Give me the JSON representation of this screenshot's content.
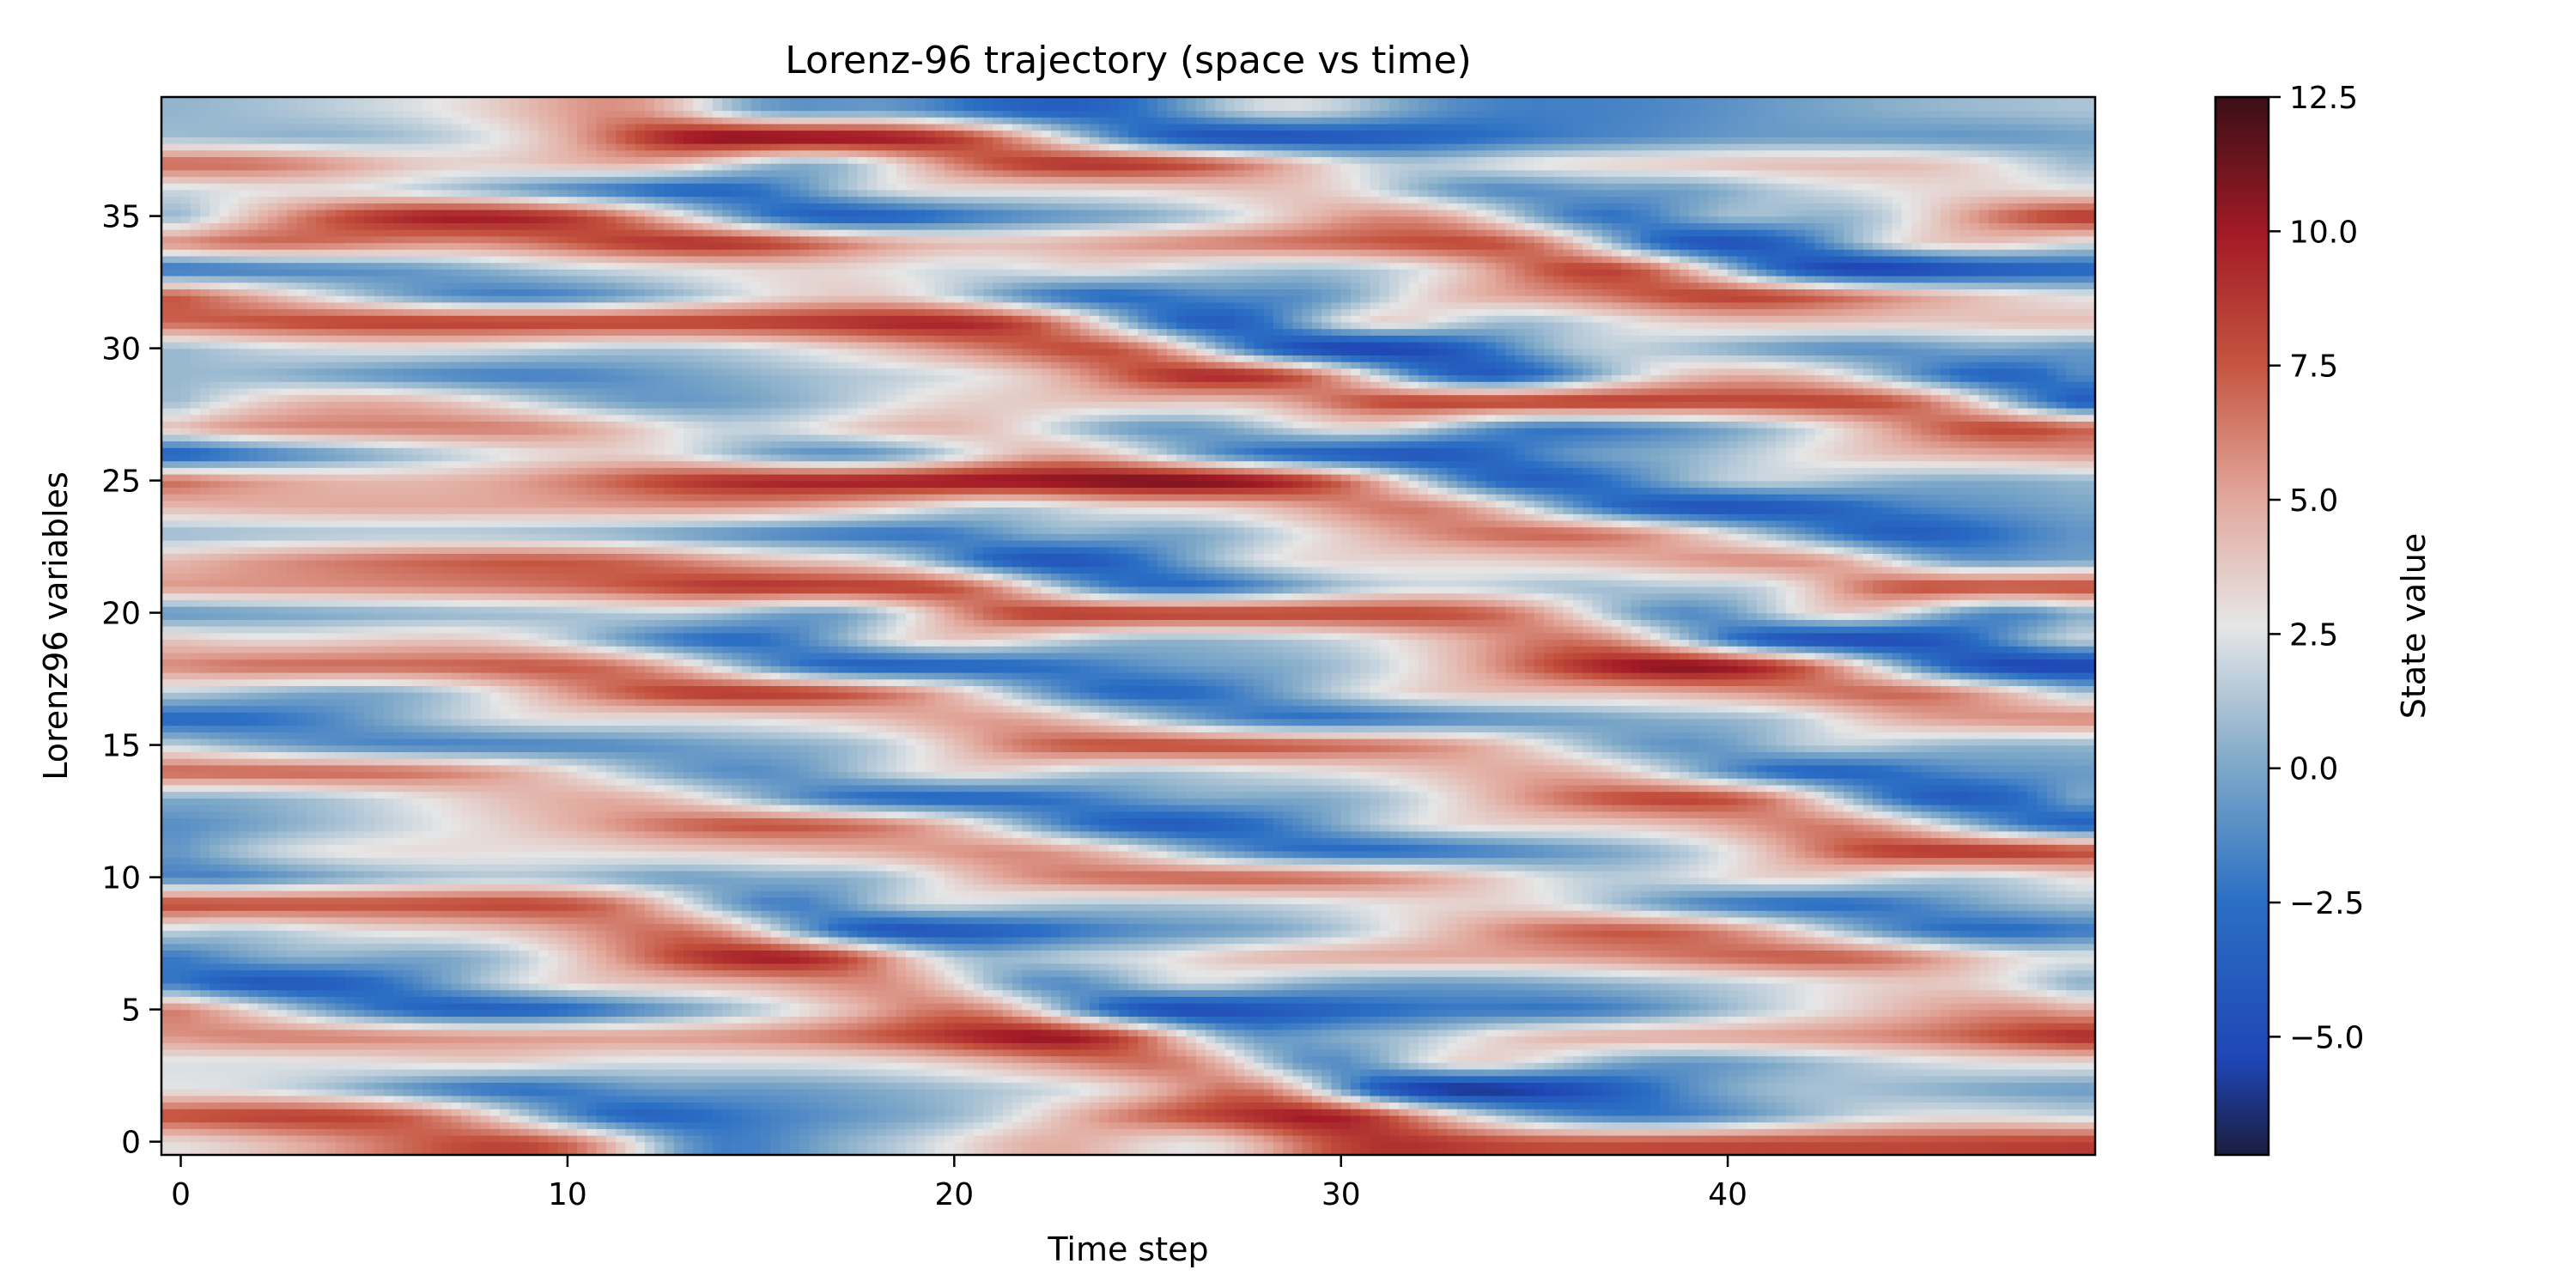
{
  "chart_data": {
    "type": "heatmap",
    "title": "Lorenz-96 trajectory (space vs time)",
    "xlabel": "Time step",
    "ylabel": "Lorenz96 variables",
    "x_range": [
      -0.5,
      49.5
    ],
    "y_range": [
      -0.5,
      39.5
    ],
    "n_time_steps": 50,
    "n_variables": 40,
    "x_ticks": [
      0,
      10,
      20,
      30,
      40
    ],
    "x_tick_labels": [
      "0",
      "10",
      "20",
      "30",
      "40"
    ],
    "y_ticks": [
      0,
      5,
      10,
      15,
      20,
      25,
      30,
      35
    ],
    "y_tick_labels": [
      "0",
      "5",
      "10",
      "15",
      "20",
      "25",
      "30",
      "35"
    ],
    "grid": false,
    "colorbar": {
      "label": "State value",
      "range": [
        -7.2,
        12.5
      ],
      "ticks": [
        -5.0,
        -2.5,
        0.0,
        2.5,
        5.0,
        7.5,
        10.0,
        12.5
      ],
      "tick_labels": [
        "−5.0",
        "−2.5",
        "0.0",
        "2.5",
        "5.0",
        "7.5",
        "10.0",
        "12.5"
      ],
      "colormap": [
        [
          0.0,
          "#1b1d3e"
        ],
        [
          0.09,
          "#1f46b5"
        ],
        [
          0.24,
          "#2b6fc4"
        ],
        [
          0.37,
          "#7fa9c8"
        ],
        [
          0.5,
          "#e6e6e6"
        ],
        [
          0.62,
          "#e2a89c"
        ],
        [
          0.75,
          "#c4533f"
        ],
        [
          0.87,
          "#a31a26"
        ],
        [
          1.0,
          "#3a0f16"
        ]
      ]
    }
  }
}
